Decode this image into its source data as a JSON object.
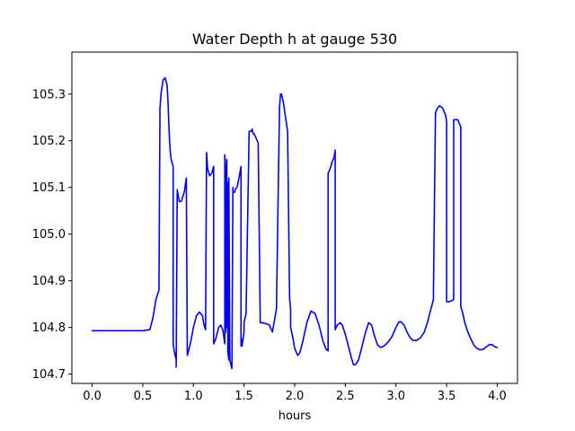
{
  "chart_data": {
    "type": "line",
    "title": "Water Depth h at gauge 530",
    "xlabel": "hours",
    "ylabel": "",
    "xlim": [
      -0.2,
      4.2
    ],
    "ylim": [
      104.68,
      105.39
    ],
    "xticks": [
      0.0,
      0.5,
      1.0,
      1.5,
      2.0,
      2.5,
      3.0,
      3.5,
      4.0
    ],
    "xtick_labels": [
      "0.0",
      "0.5",
      "1.0",
      "1.5",
      "2.0",
      "2.5",
      "3.0",
      "3.5",
      "4.0"
    ],
    "yticks": [
      104.7,
      104.8,
      104.9,
      105.0,
      105.1,
      105.2,
      105.3
    ],
    "ytick_labels": [
      "104.7",
      "104.8",
      "104.9",
      "105.0",
      "105.1",
      "105.2",
      "105.3"
    ],
    "grid": false,
    "legend": "none",
    "series": [
      {
        "color": "#0000ff",
        "x": [
          0.0,
          0.1,
          0.2,
          0.3,
          0.4,
          0.5,
          0.57,
          0.6,
          0.63,
          0.66,
          0.67,
          0.68,
          0.7,
          0.72,
          0.74,
          0.75,
          0.76,
          0.77,
          0.78,
          0.8,
          0.8,
          0.81,
          0.83,
          0.83,
          0.84,
          0.86,
          0.88,
          0.91,
          0.93,
          0.94,
          0.97,
          1.0,
          1.03,
          1.06,
          1.09,
          1.1,
          1.12,
          1.13,
          1.14,
          1.16,
          1.18,
          1.2,
          1.2,
          1.22,
          1.25,
          1.27,
          1.29,
          1.31,
          1.31,
          1.32,
          1.32,
          1.33,
          1.33,
          1.34,
          1.34,
          1.35,
          1.35,
          1.36,
          1.37,
          1.38,
          1.39,
          1.39,
          1.41,
          1.41,
          1.43,
          1.45,
          1.47,
          1.47,
          1.48,
          1.48,
          1.5,
          1.5,
          1.52,
          1.55,
          1.57,
          1.58,
          1.59,
          1.6,
          1.62,
          1.64,
          1.66,
          1.68,
          1.68,
          1.72,
          1.75,
          1.78,
          1.82,
          1.85,
          1.86,
          1.87,
          1.89,
          1.91,
          1.93,
          1.95,
          1.96,
          1.96,
          1.98,
          2.0,
          2.03,
          2.05,
          2.08,
          2.12,
          2.16,
          2.2,
          2.24,
          2.28,
          2.31,
          2.33,
          2.33,
          2.35,
          2.37,
          2.39,
          2.4,
          2.4,
          2.42,
          2.45,
          2.47,
          2.5,
          2.53,
          2.56,
          2.58,
          2.6,
          2.63,
          2.66,
          2.7,
          2.73,
          2.76,
          2.79,
          2.82,
          2.85,
          2.88,
          2.92,
          2.96,
          3.0,
          3.03,
          3.05,
          3.08,
          3.11,
          3.14,
          3.17,
          3.2,
          3.24,
          3.28,
          3.31,
          3.34,
          3.37,
          3.37,
          3.39,
          3.41,
          3.43,
          3.46,
          3.49,
          3.5,
          3.5,
          3.52,
          3.55,
          3.57,
          3.57,
          3.59,
          3.61,
          3.63,
          3.64,
          3.64,
          3.66,
          3.68,
          3.71,
          3.74,
          3.77,
          3.8,
          3.83,
          3.86,
          3.89,
          3.92,
          3.95,
          3.98,
          4.0
        ],
        "y": [
          104.793,
          104.793,
          104.793,
          104.793,
          104.793,
          104.793,
          104.795,
          104.82,
          104.86,
          104.88,
          105.27,
          105.3,
          105.33,
          105.335,
          105.32,
          105.28,
          105.22,
          105.18,
          105.16,
          105.145,
          104.765,
          104.75,
          104.73,
          104.715,
          105.095,
          105.07,
          105.07,
          105.09,
          105.12,
          104.74,
          104.765,
          104.8,
          104.825,
          104.833,
          104.825,
          104.81,
          104.795,
          105.175,
          105.14,
          105.125,
          105.13,
          105.145,
          104.765,
          104.775,
          104.8,
          104.805,
          104.795,
          104.765,
          105.17,
          105.12,
          104.79,
          105.16,
          104.8,
          105.11,
          104.75,
          104.73,
          105.12,
          104.73,
          104.72,
          104.712,
          105.1,
          105.09,
          105.09,
          105.095,
          105.1,
          105.12,
          105.145,
          104.76,
          104.775,
          104.76,
          104.79,
          104.81,
          104.83,
          105.22,
          105.22,
          105.225,
          105.215,
          105.215,
          105.205,
          105.195,
          104.81,
          104.81,
          104.81,
          104.808,
          104.805,
          104.79,
          104.84,
          105.27,
          105.3,
          105.3,
          105.28,
          105.25,
          105.22,
          104.86,
          104.84,
          104.8,
          104.78,
          104.755,
          104.74,
          104.745,
          104.77,
          104.81,
          104.835,
          104.83,
          104.805,
          104.77,
          104.753,
          104.75,
          105.13,
          105.14,
          105.155,
          105.165,
          105.18,
          104.795,
          104.805,
          104.81,
          104.805,
          104.785,
          104.76,
          104.735,
          104.72,
          104.72,
          104.73,
          104.755,
          104.79,
          104.81,
          104.805,
          104.78,
          104.762,
          104.757,
          104.76,
          104.768,
          104.78,
          104.8,
          104.812,
          104.812,
          104.805,
          104.79,
          104.778,
          104.772,
          104.772,
          104.777,
          104.79,
          104.81,
          104.835,
          104.86,
          104.875,
          105.26,
          105.27,
          105.275,
          105.27,
          105.255,
          105.24,
          104.855,
          104.855,
          104.857,
          104.86,
          105.245,
          105.245,
          105.245,
          105.235,
          105.23,
          104.845,
          104.83,
          104.81,
          104.79,
          104.775,
          104.762,
          104.755,
          104.752,
          104.753,
          104.758,
          104.763,
          104.763,
          104.758,
          104.757
        ]
      }
    ]
  }
}
